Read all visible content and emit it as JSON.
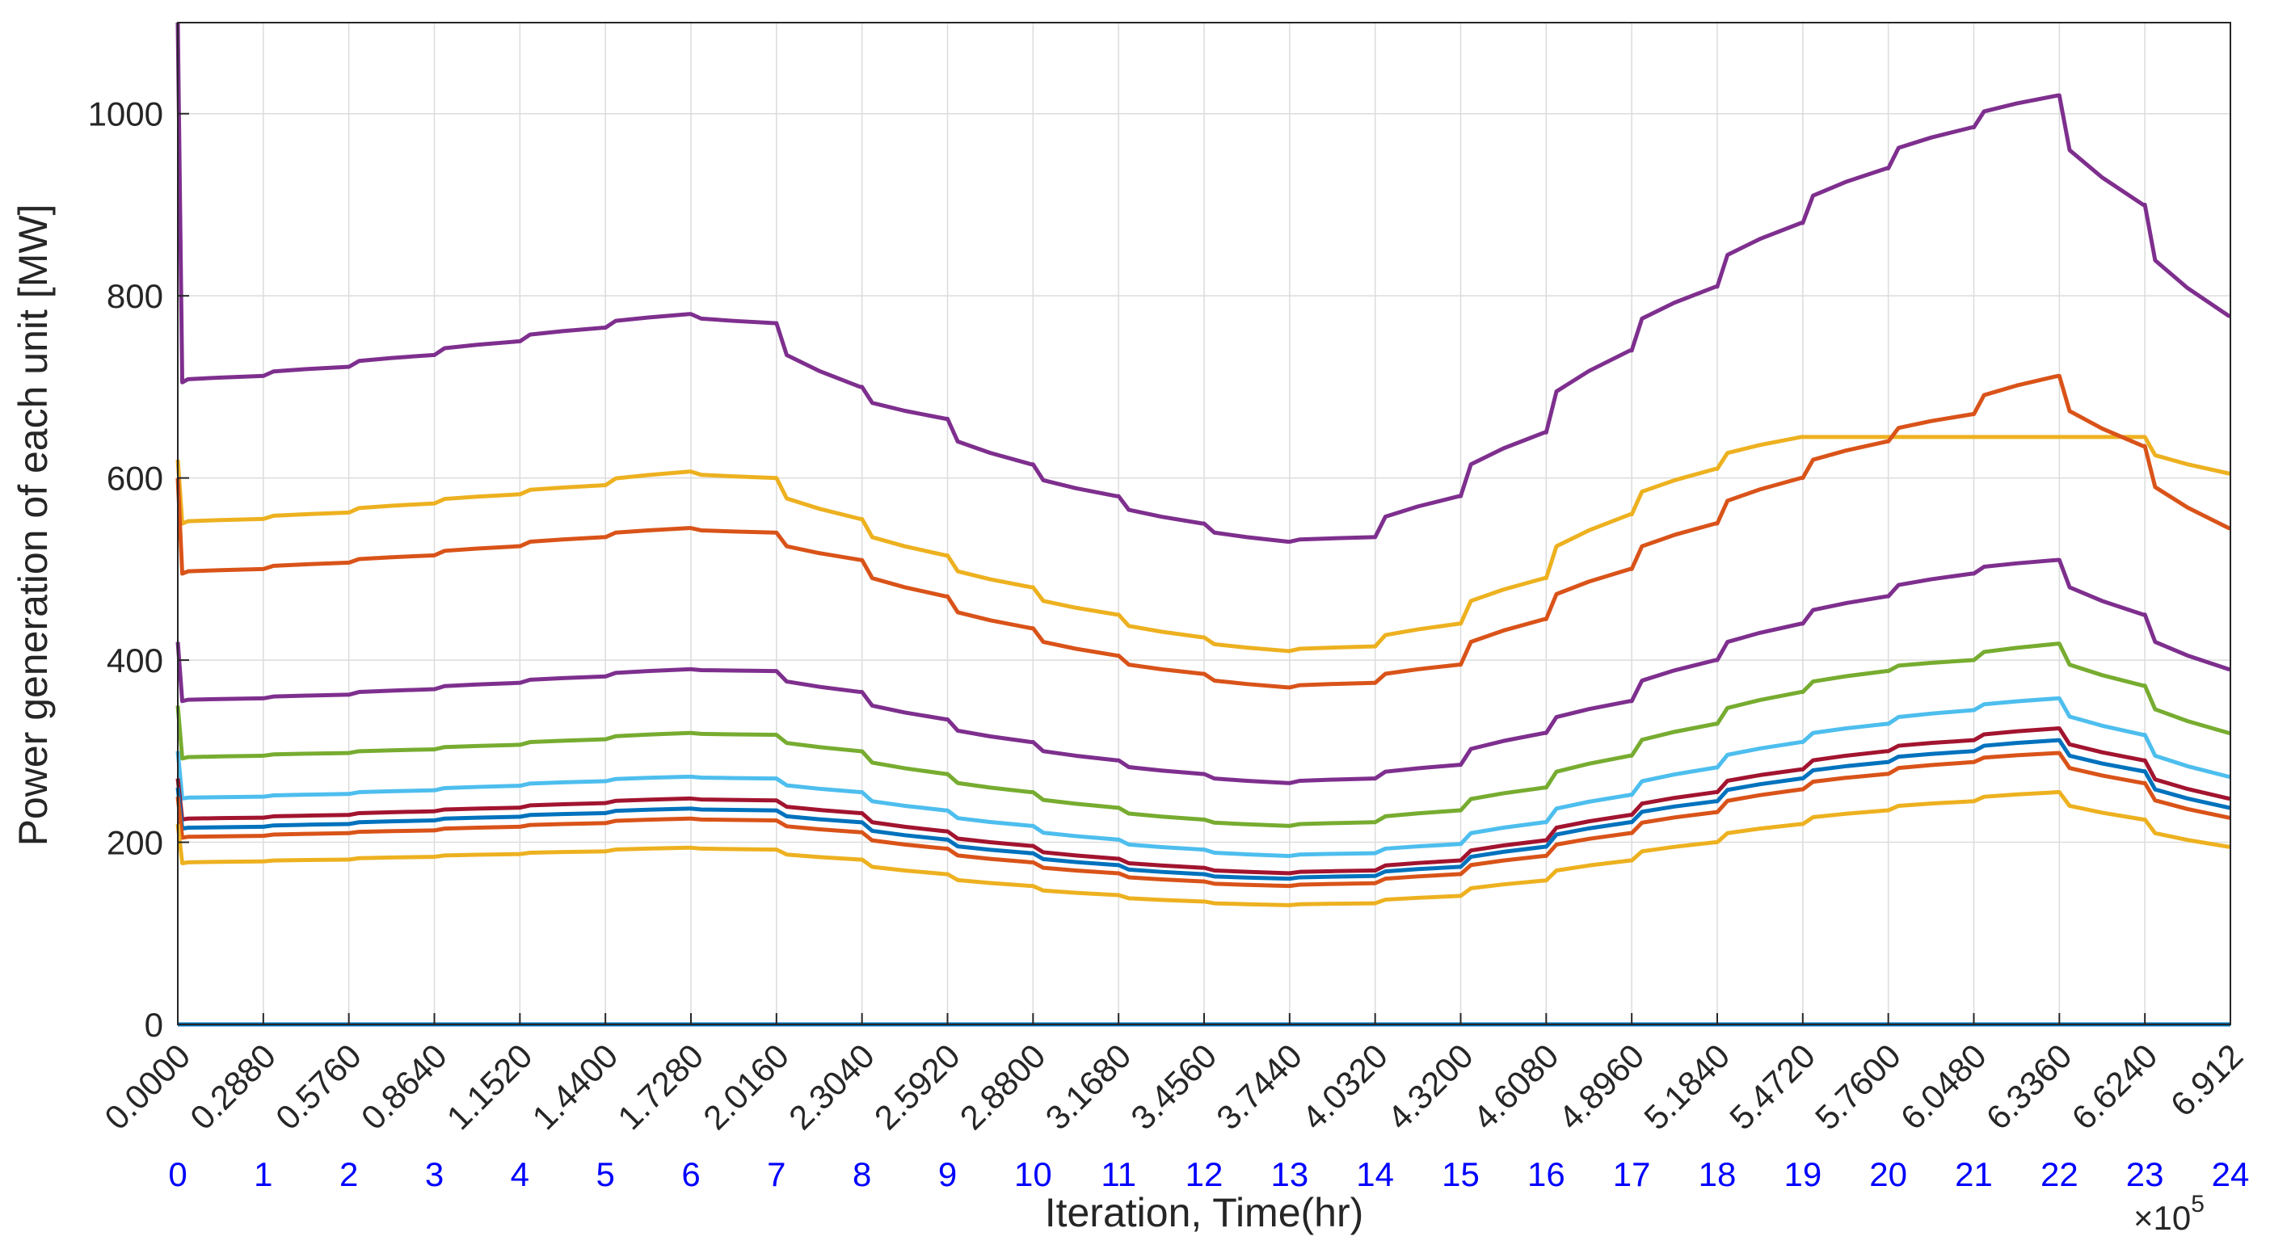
{
  "chart_data": {
    "type": "line",
    "title": "",
    "xlabel": "Iteration, Time(hr)",
    "ylabel": "Power generation of each unit [MW]",
    "x_exponent_label": "×10",
    "x_exponent_power": "5",
    "xlim": [
      0,
      6.912
    ],
    "ylim": [
      0,
      1100
    ],
    "yticks": [
      0,
      200,
      400,
      600,
      800,
      1000
    ],
    "grid": true,
    "legend": "none",
    "x_ticks": [
      0,
      0.288,
      0.576,
      0.864,
      1.152,
      1.44,
      1.728,
      2.016,
      2.304,
      2.592,
      2.88,
      3.168,
      3.456,
      3.744,
      4.032,
      4.32,
      4.608,
      4.896,
      5.184,
      5.472,
      5.76,
      6.048,
      6.336,
      6.624,
      6.912
    ],
    "x_tick_labels": [
      "0.0000",
      "0.2880",
      "0.5760",
      "0.8640",
      "1.1520",
      "1.4400",
      "1.7280",
      "2.0160",
      "2.3040",
      "2.5920",
      "2.8800",
      "3.1680",
      "3.4560",
      "3.7440",
      "4.0320",
      "4.3200",
      "4.6080",
      "4.8960",
      "5.1840",
      "5.4720",
      "5.7600",
      "6.0480",
      "6.3360",
      "6.6240",
      "6.912"
    ],
    "hour_labels": [
      "0",
      "1",
      "2",
      "3",
      "4",
      "5",
      "6",
      "7",
      "8",
      "9",
      "10",
      "11",
      "12",
      "13",
      "14",
      "15",
      "16",
      "17",
      "18",
      "19",
      "20",
      "21",
      "22",
      "23",
      "24"
    ],
    "hours": [
      0,
      1,
      2,
      3,
      4,
      5,
      6,
      7,
      8,
      9,
      10,
      11,
      12,
      13,
      14,
      15,
      16,
      17,
      18,
      19,
      20,
      21,
      22,
      23
    ],
    "series": [
      {
        "color": "#7e2f8e",
        "start": 1100,
        "values": [
          705,
          712,
          722,
          735,
          750,
          765,
          780,
          770,
          700,
          665,
          615,
          580,
          550,
          530,
          535,
          580,
          650,
          740,
          810,
          880,
          940,
          985,
          1020,
          900,
          778
        ]
      },
      {
        "color": "#edb120",
        "start": 620,
        "values": [
          550,
          555,
          562,
          572,
          582,
          592,
          607,
          600,
          555,
          515,
          480,
          450,
          425,
          410,
          415,
          440,
          490,
          560,
          610,
          645,
          645,
          645,
          645,
          645,
          605
        ]
      },
      {
        "color": "#d95319",
        "start": 600,
        "values": [
          495,
          500,
          507,
          515,
          525,
          535,
          545,
          540,
          510,
          470,
          435,
          405,
          385,
          370,
          375,
          395,
          445,
          500,
          550,
          600,
          640,
          670,
          712,
          635,
          545
        ]
      },
      {
        "color": "#7e2f8e",
        "start": 420,
        "values": [
          355,
          358,
          362,
          368,
          375,
          382,
          390,
          388,
          365,
          335,
          310,
          290,
          275,
          265,
          270,
          285,
          320,
          355,
          400,
          440,
          470,
          495,
          510,
          450,
          390
        ]
      },
      {
        "color": "#77ac30",
        "start": 350,
        "values": [
          292,
          295,
          298,
          302,
          307,
          313,
          320,
          318,
          300,
          275,
          255,
          238,
          225,
          218,
          222,
          235,
          260,
          295,
          330,
          365,
          388,
          400,
          418,
          372,
          320
        ]
      },
      {
        "color": "#4dbeee",
        "start": 300,
        "values": [
          248,
          250,
          253,
          257,
          262,
          267,
          272,
          270,
          255,
          235,
          218,
          203,
          192,
          185,
          188,
          198,
          222,
          252,
          282,
          310,
          330,
          345,
          358,
          318,
          272
        ]
      },
      {
        "color": "#a2142f",
        "start": 270,
        "values": [
          225,
          227,
          230,
          234,
          238,
          243,
          248,
          246,
          232,
          212,
          196,
          182,
          172,
          166,
          169,
          180,
          202,
          230,
          255,
          280,
          300,
          312,
          325,
          290,
          248
        ]
      },
      {
        "color": "#0072bd",
        "start": 260,
        "values": [
          215,
          217,
          220,
          224,
          228,
          232,
          237,
          235,
          222,
          203,
          188,
          175,
          165,
          160,
          163,
          173,
          195,
          222,
          245,
          270,
          288,
          300,
          312,
          278,
          238
        ]
      },
      {
        "color": "#d95319",
        "start": 250,
        "values": [
          205,
          207,
          210,
          213,
          217,
          221,
          226,
          224,
          211,
          193,
          178,
          166,
          157,
          152,
          155,
          165,
          185,
          210,
          233,
          258,
          275,
          288,
          298,
          265,
          227
        ]
      },
      {
        "color": "#edb120",
        "start": 220,
        "values": [
          177,
          179,
          181,
          184,
          187,
          190,
          194,
          192,
          181,
          165,
          152,
          142,
          135,
          131,
          133,
          141,
          158,
          180,
          200,
          220,
          235,
          245,
          255,
          225,
          195
        ]
      },
      {
        "color": "#0072bd",
        "start": 0,
        "values": [
          0,
          0,
          0,
          0,
          0,
          0,
          0,
          0,
          0,
          0,
          0,
          0,
          0,
          0,
          0,
          0,
          0,
          0,
          0,
          0,
          0,
          0,
          0,
          0,
          0
        ]
      }
    ]
  }
}
